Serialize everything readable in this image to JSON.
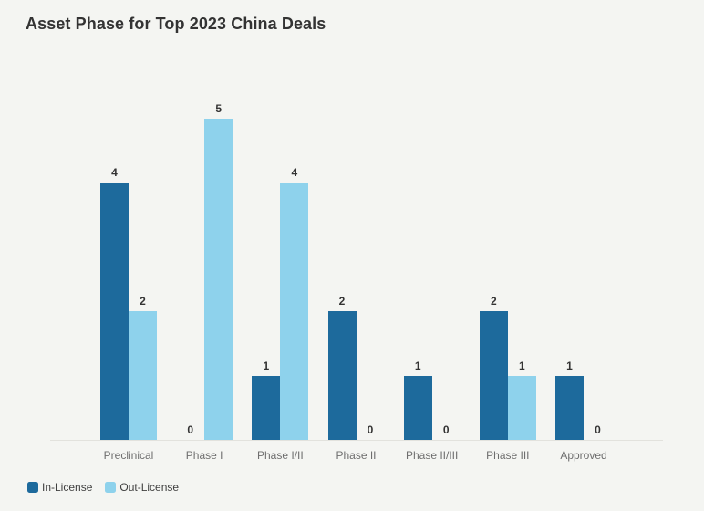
{
  "title": "Asset Phase for Top 2023 China Deals",
  "chart_data": {
    "type": "bar",
    "subtype": "grouped-column",
    "title": "Asset Phase for Top 2023 China Deals",
    "categories": [
      "Preclinical",
      "Phase I",
      "Phase I/II",
      "Phase II",
      "Phase II/III",
      "Phase III",
      "Approved"
    ],
    "series": [
      {
        "name": "In-License",
        "color": "#1d6a9c",
        "values": [
          4,
          0,
          1,
          2,
          1,
          2,
          1
        ]
      },
      {
        "name": "Out-License",
        "color": "#8ed2ec",
        "values": [
          2,
          5,
          4,
          0,
          0,
          1,
          0
        ]
      }
    ],
    "ylim": [
      0,
      5
    ],
    "grid": false,
    "y_axis_visible": false,
    "value_labels": true,
    "legend_position": "bottom-left"
  },
  "colors": {
    "background": "#f4f5f2",
    "in_license": "#1d6a9c",
    "out_license": "#8ed2ec",
    "title_text": "#333333",
    "value_label_text": "#333333",
    "category_label_text": "#6e6e6e",
    "axis_line": "#e2e2dd"
  }
}
